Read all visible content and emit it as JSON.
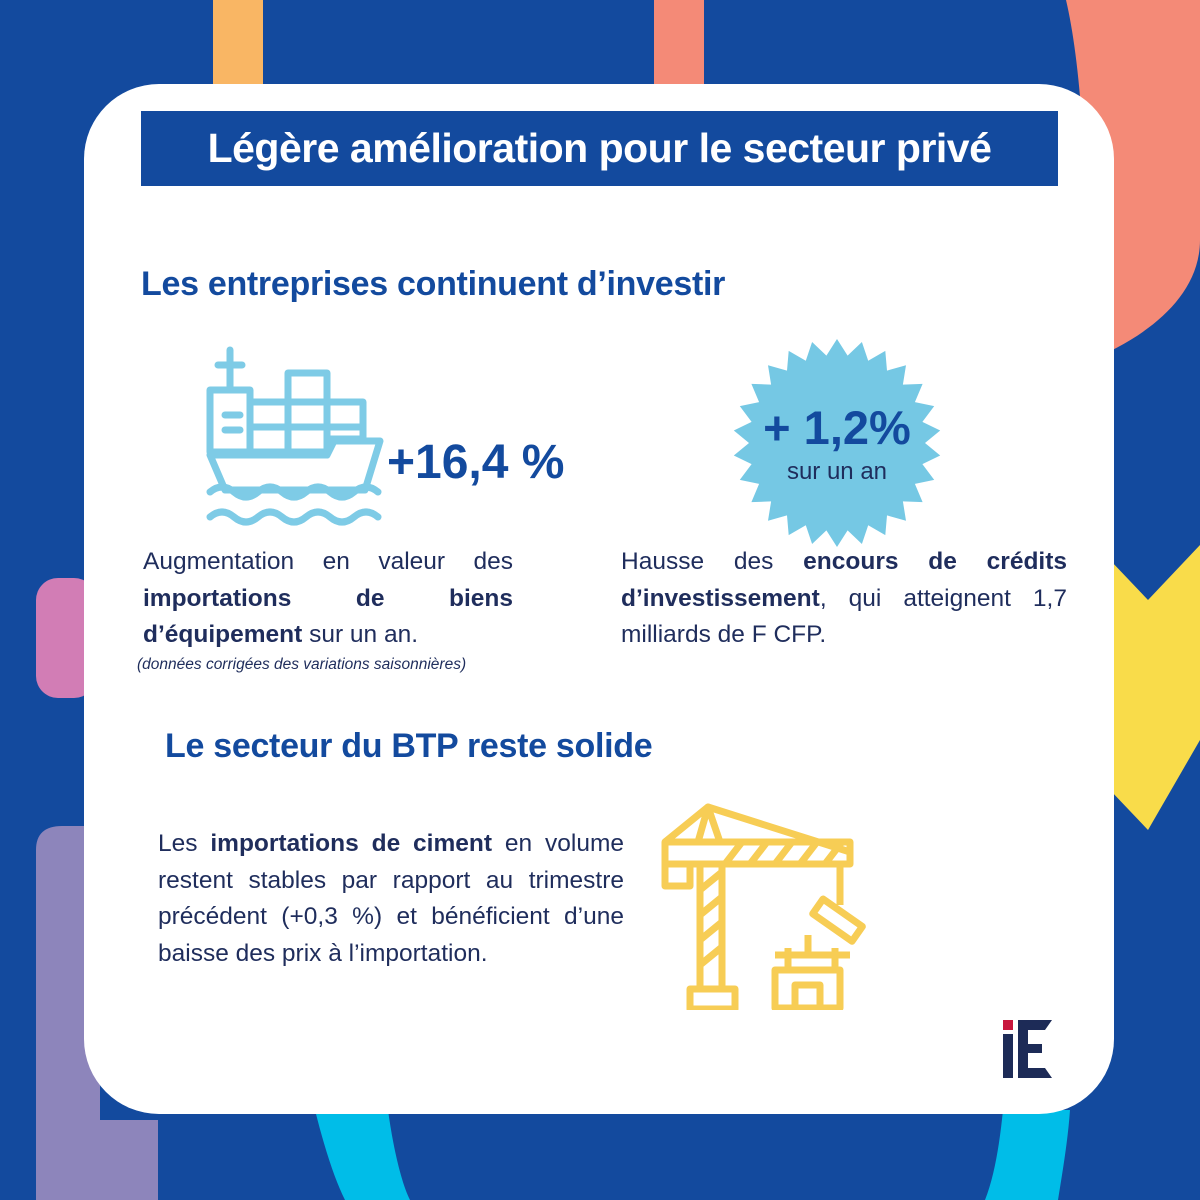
{
  "colors": {
    "background": "#134a9e",
    "card": "#ffffff",
    "accent_blue": "#134a9e",
    "text_dark": "#1f2d5c",
    "ship_icon": "#7ecbe6",
    "badge": "#75c8e4",
    "crane_icon": "#f7cd55",
    "orange": "#f9b664",
    "salmon": "#f48a77",
    "yellow": "#f9dc4a",
    "pink": "#d27db5",
    "lavender": "#8d85bb",
    "cyan": "#00bde8",
    "logo_navy": "#1d2b57",
    "logo_red": "#c8163d"
  },
  "title": "Légère amélioration pour le secteur privé",
  "section1": {
    "heading": "Les entreprises continuent d’investir",
    "imports": {
      "icon": "cargo-ship-icon",
      "stat": "+16,4 %",
      "text_parts": {
        "line1": "Augmentation en valeur des ",
        "bold": "importations de biens d’équipement",
        "end": " sur un an."
      },
      "note": "(données corrigées des variations saisonnières)"
    },
    "credits": {
      "badge_value": "+ 1,2%",
      "badge_caption": "sur un an",
      "text_parts": {
        "start": "Hausse des ",
        "bold": "encours de crédits d’investissement",
        "end": ", qui atteignent 1,7 milliards de F CFP."
      }
    }
  },
  "section2": {
    "heading": "Le secteur du BTP reste solide",
    "text_parts": {
      "start": "Les ",
      "bold": "importations de ciment",
      "end": " en volume restent stables par rapport au trimestre précédent (+0,3 %) et bénéficient d’une baisse des prix à l’importation."
    },
    "icon": "construction-crane-icon"
  },
  "logo": {
    "text": "iE"
  }
}
